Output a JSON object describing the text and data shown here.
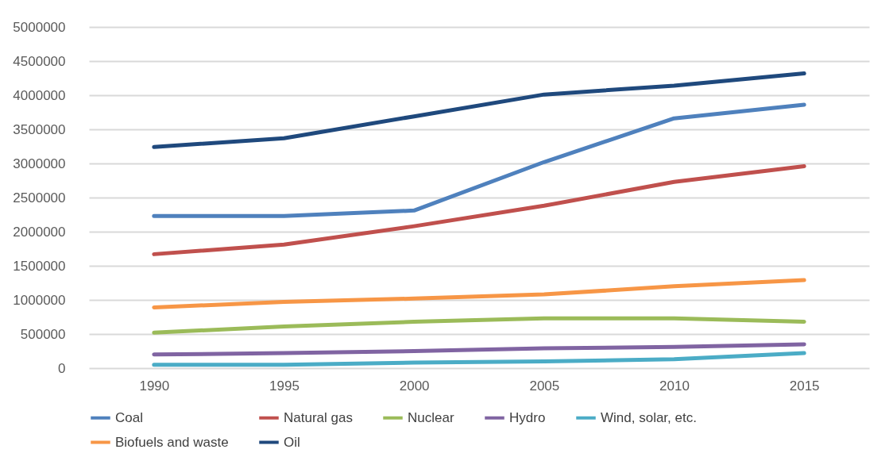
{
  "chart_data": {
    "type": "line",
    "categories": [
      "1990",
      "1995",
      "2000",
      "2005",
      "2010",
      "2015"
    ],
    "ylim": [
      0,
      5000000
    ],
    "yticks": [
      0,
      500000,
      1000000,
      1500000,
      2000000,
      2500000,
      3000000,
      3500000,
      4000000,
      4500000,
      5000000
    ],
    "grid": "y",
    "legend": "bottom",
    "marker": "none",
    "line_style": "solid",
    "series": [
      {
        "name": "Coal",
        "color": "#4f81bd",
        "values": [
          2230000,
          2230000,
          2310000,
          3020000,
          3660000,
          3860000
        ]
      },
      {
        "name": "Natural gas",
        "color": "#c0504d",
        "values": [
          1670000,
          1810000,
          2080000,
          2380000,
          2730000,
          2960000
        ]
      },
      {
        "name": "Nuclear",
        "color": "#9bbb59",
        "values": [
          520000,
          610000,
          680000,
          730000,
          730000,
          680000
        ]
      },
      {
        "name": "Hydro",
        "color": "#8064a2",
        "values": [
          200000,
          220000,
          250000,
          290000,
          310000,
          350000
        ]
      },
      {
        "name": "Wind, solar, etc.",
        "color": "#4bacc6",
        "values": [
          50000,
          50000,
          80000,
          100000,
          130000,
          220000
        ]
      },
      {
        "name": "Biofuels and waste",
        "color": "#f79646",
        "values": [
          890000,
          970000,
          1020000,
          1080000,
          1200000,
          1290000
        ]
      },
      {
        "name": "Oil",
        "color": "#1f497d",
        "values": [
          3240000,
          3370000,
          3690000,
          4010000,
          4140000,
          4320000
        ]
      }
    ]
  }
}
